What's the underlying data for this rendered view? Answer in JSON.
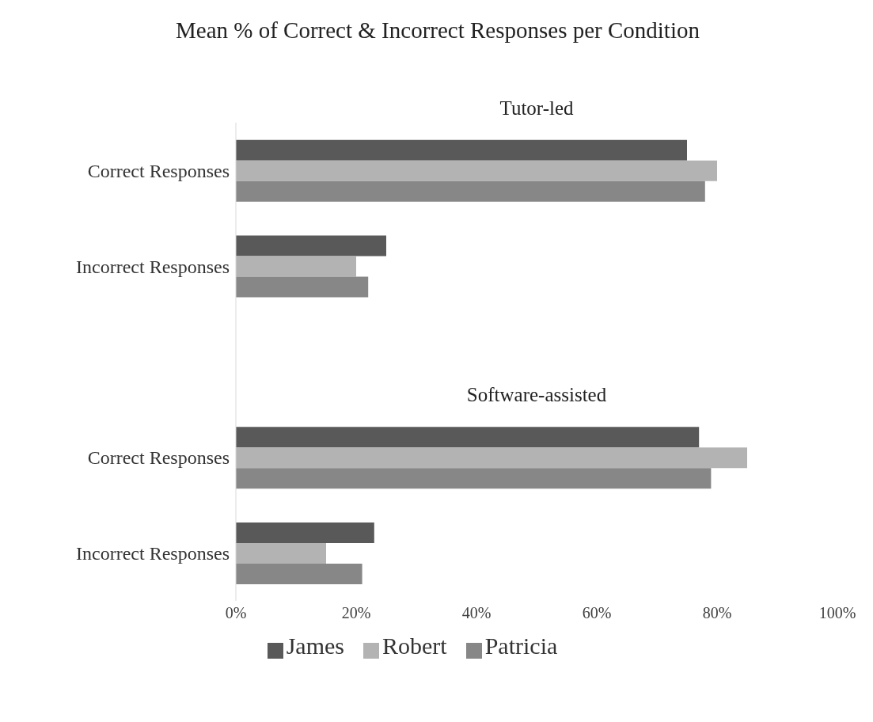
{
  "chart_data": {
    "type": "bar",
    "orientation": "horizontal",
    "title": "Mean % of Correct & Incorrect Responses per Condition",
    "categories": [
      "Correct Responses",
      "Incorrect Responses",
      null,
      "Correct Responses",
      "Incorrect Responses"
    ],
    "series": [
      {
        "name": "James",
        "color": "#595959",
        "values": [
          75,
          25,
          null,
          77,
          23
        ]
      },
      {
        "name": "Robert",
        "color": "#b3b3b3",
        "values": [
          80,
          20,
          null,
          85,
          15
        ]
      },
      {
        "name": "Patricia",
        "color": "#878787",
        "values": [
          78,
          22,
          null,
          79,
          21
        ]
      }
    ],
    "annotations": [
      "Tutor-led",
      "Software-assisted"
    ],
    "xlim": [
      0,
      100
    ],
    "xticks": [
      {
        "value": 0,
        "label": "0%"
      },
      {
        "value": 20,
        "label": "20%"
      },
      {
        "value": 40,
        "label": "40%"
      },
      {
        "value": 60,
        "label": "60%"
      },
      {
        "value": 80,
        "label": "80%"
      },
      {
        "value": 100,
        "label": "100%"
      }
    ],
    "grid": false,
    "legend": "bottom"
  }
}
